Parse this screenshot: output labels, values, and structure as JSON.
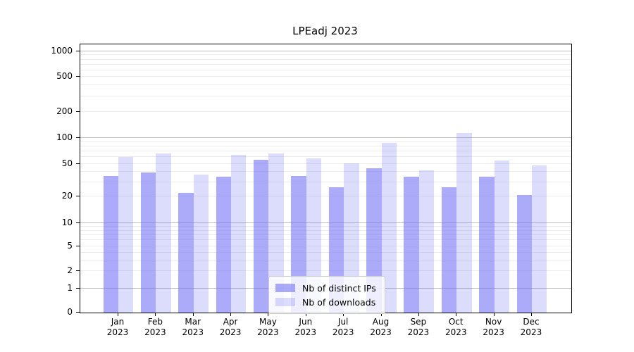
{
  "chart_data": {
    "type": "bar",
    "title": "LPEadj 2023",
    "year": "2023",
    "categories": [
      "Jan 2023",
      "Feb 2023",
      "Mar 2023",
      "Apr 2023",
      "May 2023",
      "Jun 2023",
      "Jul 2023",
      "Aug 2023",
      "Sep 2023",
      "Oct 2023",
      "Nov 2023",
      "Dec 2023"
    ],
    "months": [
      "Jan",
      "Feb",
      "Mar",
      "Apr",
      "May",
      "Jun",
      "Jul",
      "Aug",
      "Sep",
      "Oct",
      "Nov",
      "Dec"
    ],
    "series": [
      {
        "name": "Nb of distinct IPs",
        "color_hex": "#a6a6f4",
        "fill": "rgba(110,110,245,0.58)",
        "values": [
          36,
          39,
          22,
          35,
          56,
          36,
          26,
          44,
          35,
          26,
          35,
          21
        ]
      },
      {
        "name": "Nb of downloads",
        "color_hex": "#dcdcfb",
        "fill": "rgba(110,110,245,0.24)",
        "values": [
          60,
          66,
          37,
          64,
          66,
          58,
          51,
          87,
          42,
          114,
          55,
          48
        ]
      }
    ],
    "yscale": "symlog",
    "yticks": [
      0,
      1,
      2,
      5,
      10,
      20,
      50,
      100,
      200,
      500,
      1000
    ],
    "ylim": [
      0,
      1400
    ],
    "grid": true,
    "legend_position": "lower center",
    "axis_color": "#000000",
    "major_grid_color": "#bdbdbd",
    "minor_grid_color": "#ececec"
  }
}
